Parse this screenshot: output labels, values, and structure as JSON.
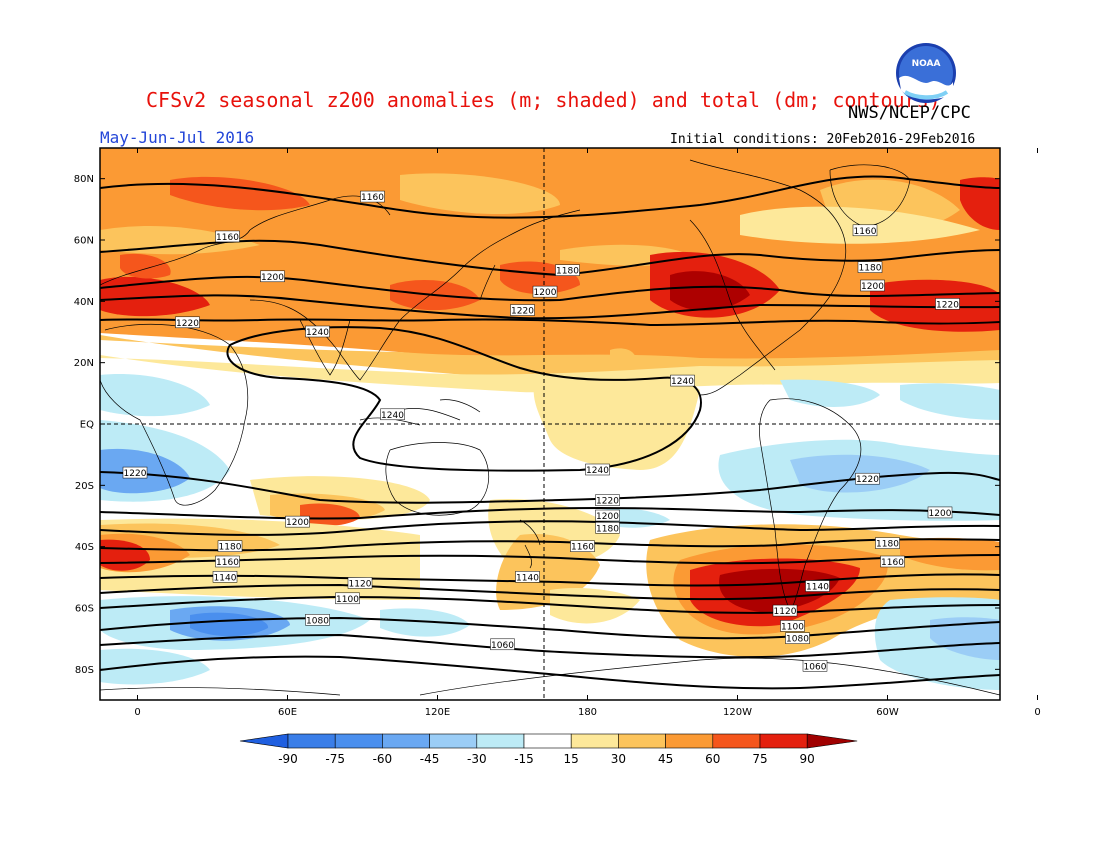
{
  "header": {
    "title": "CFSv2 seasonal z200 anomalies (m; shaded) and total (dm; contours)",
    "org": "NWS/NCEP/CPC",
    "season": "May-Jun-Jul 2016",
    "initial_conditions": "Initial conditions: 20Feb2016-29Feb2016",
    "logo_text": "NOAA"
  },
  "map": {
    "lat_ticks": [
      "80N",
      "60N",
      "40N",
      "20N",
      "EQ",
      "20S",
      "40S",
      "60S",
      "80S"
    ],
    "lon_ticks": [
      "0",
      "60E",
      "120E",
      "180",
      "120W",
      "60W",
      "0"
    ],
    "contour_labels": [
      {
        "text": "1160",
        "lon": 94,
        "lat": 74
      },
      {
        "text": "1160",
        "lon": 36,
        "lat": 61
      },
      {
        "text": "1200",
        "lon": 54,
        "lat": 48
      },
      {
        "text": "1180",
        "lon": 172,
        "lat": 50
      },
      {
        "text": "1200",
        "lon": 163,
        "lat": 43
      },
      {
        "text": "1220",
        "lon": 154,
        "lat": 37
      },
      {
        "text": "1220",
        "lon": 20,
        "lat": 33
      },
      {
        "text": "1240",
        "lon": 72,
        "lat": 30
      },
      {
        "text": "1240",
        "lon": 218,
        "lat": 14
      },
      {
        "text": "1240",
        "lon": 102,
        "lat": 3
      },
      {
        "text": "1240",
        "lon": 184,
        "lat": -15
      },
      {
        "text": "1220",
        "lon": -1,
        "lat": -16
      },
      {
        "text": "1220",
        "lon": 188,
        "lat": -25
      },
      {
        "text": "1200",
        "lon": 188,
        "lat": -30
      },
      {
        "text": "1180",
        "lon": 188,
        "lat": -34
      },
      {
        "text": "1200",
        "lon": 64,
        "lat": -32
      },
      {
        "text": "1180",
        "lon": 37,
        "lat": -40
      },
      {
        "text": "1160",
        "lon": 36,
        "lat": -45
      },
      {
        "text": "1140",
        "lon": 35,
        "lat": -50
      },
      {
        "text": "1160",
        "lon": 178,
        "lat": -40
      },
      {
        "text": "1140",
        "lon": 156,
        "lat": -50
      },
      {
        "text": "1120",
        "lon": 89,
        "lat": -52
      },
      {
        "text": "1100",
        "lon": 84,
        "lat": -57
      },
      {
        "text": "1080",
        "lon": 72,
        "lat": -64
      },
      {
        "text": "1060",
        "lon": 146,
        "lat": -72
      },
      {
        "text": "1060",
        "lon": 271,
        "lat": -79
      },
      {
        "text": "1080",
        "lon": 264,
        "lat": -70
      },
      {
        "text": "1100",
        "lon": 262,
        "lat": -66
      },
      {
        "text": "1120",
        "lon": 259,
        "lat": -61
      },
      {
        "text": "1140",
        "lon": 272,
        "lat": -53
      },
      {
        "text": "1160",
        "lon": 302,
        "lat": -45
      },
      {
        "text": "1180",
        "lon": 300,
        "lat": -39
      },
      {
        "text": "1200",
        "lon": 321,
        "lat": -29
      },
      {
        "text": "1220",
        "lon": 292,
        "lat": -18
      },
      {
        "text": "1160",
        "lon": 291,
        "lat": 63
      },
      {
        "text": "1180",
        "lon": 293,
        "lat": 51
      },
      {
        "text": "1200",
        "lon": 294,
        "lat": 45
      },
      {
        "text": "1220",
        "lon": 324,
        "lat": 39
      }
    ]
  },
  "colorbar": {
    "ticks": [
      "-90",
      "-75",
      "-60",
      "-45",
      "-30",
      "-15",
      "15",
      "30",
      "45",
      "60",
      "75",
      "90"
    ],
    "colors": {
      "low_arrow": "#1f5fe0",
      "bins": [
        "#3a7ee8",
        "#4a8fee",
        "#6aa8f2",
        "#9bcdf6",
        "#bdebf6",
        "#ffffff",
        "#fde89a",
        "#fcc45c",
        "#fb9a34",
        "#f5561c",
        "#e4200e",
        "#ad0000"
      ],
      "high_arrow": "#a00000"
    }
  }
}
